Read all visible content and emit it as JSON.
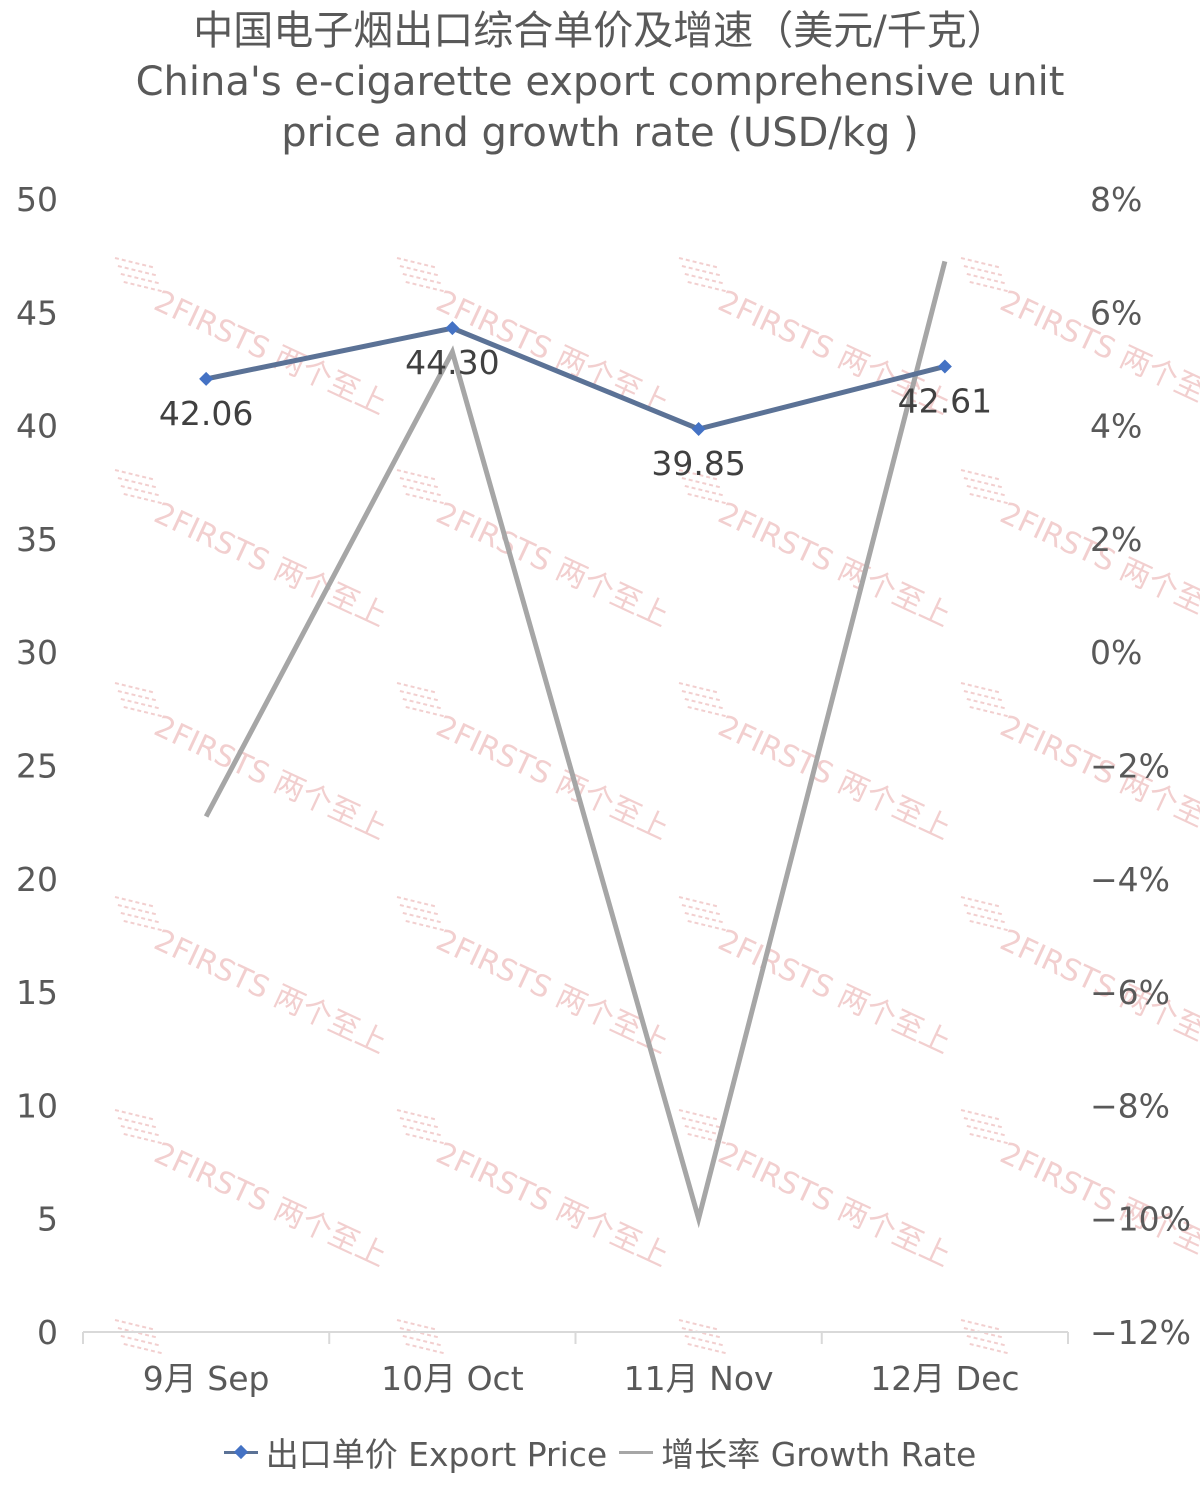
{
  "chart_data": {
    "type": "line",
    "title": "中国电子烟出口综合单价及增速（美元/千克）",
    "subtitle_lines": [
      "China's e-cigarette export comprehensive unit",
      "price and growth rate (USD/kg )"
    ],
    "categories": [
      "9月 Sep",
      "10月 Oct",
      "11月 Nov",
      "12月 Dec"
    ],
    "series": [
      {
        "name": "出口单价 Export Price",
        "axis": "left",
        "values": [
          42.06,
          44.3,
          39.85,
          42.61
        ],
        "labels": [
          "42.06",
          "44.30",
          "39.85",
          "42.61"
        ],
        "color": "#5B7296",
        "marker_color": "#4472C4"
      },
      {
        "name": "增长率 Growth Rate",
        "axis": "right",
        "values": [
          -2.9,
          5.3,
          -10.0,
          6.9
        ],
        "color": "#A6A6A6"
      }
    ],
    "y_left": {
      "min": 0,
      "max": 50,
      "step": 5,
      "ticks": [
        "0",
        "5",
        "10",
        "15",
        "20",
        "25",
        "30",
        "35",
        "40",
        "45",
        "50"
      ]
    },
    "y_right": {
      "min": -12,
      "max": 8,
      "step": 2,
      "ticks": [
        "-12%",
        "-10%",
        "-8%",
        "-6%",
        "-4%",
        "-2%",
        "0%",
        "2%",
        "4%",
        "6%",
        "8%"
      ]
    },
    "grid": false,
    "legend": "bottom"
  },
  "watermark": {
    "text": "2FIRSTS 两个至上",
    "color": "#E8A9A9"
  }
}
